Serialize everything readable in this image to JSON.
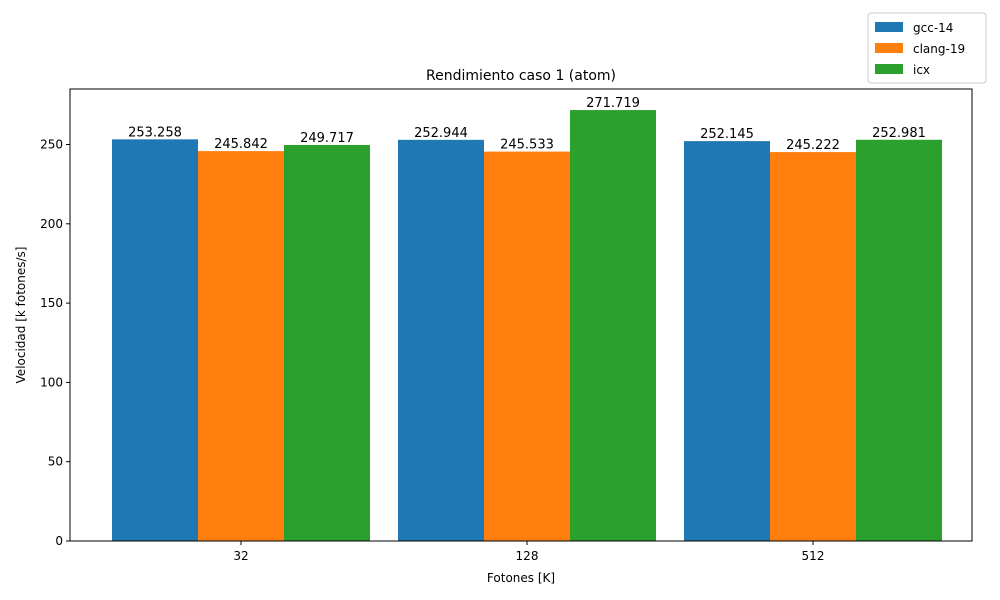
{
  "chart_data": {
    "type": "bar",
    "title": "Rendimiento caso 1 (atom)",
    "xlabel": "Fotones [K]",
    "ylabel": "Velocidad [k fotones/s]",
    "categories": [
      "32",
      "128",
      "512"
    ],
    "ylim": [
      0,
      285
    ],
    "yticks": [
      0,
      50,
      100,
      150,
      200,
      250
    ],
    "grid": false,
    "legend_position": "top-right, outside plot",
    "series": [
      {
        "name": "gcc-14",
        "color": "#1f77b4",
        "values": [
          253.258,
          252.944,
          252.145
        ]
      },
      {
        "name": "clang-19",
        "color": "#ff7f0e",
        "values": [
          245.842,
          245.533,
          245.222
        ]
      },
      {
        "name": "icx",
        "color": "#2ca02c",
        "values": [
          249.717,
          271.719,
          252.981
        ]
      }
    ]
  }
}
